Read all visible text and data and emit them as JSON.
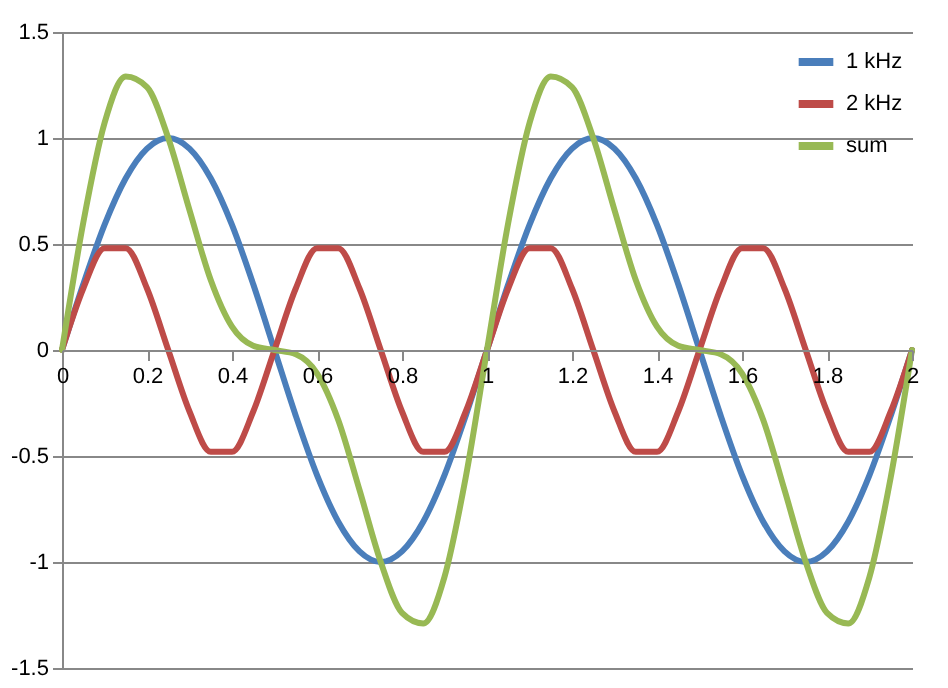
{
  "chart_data": {
    "type": "line",
    "x": [
      0,
      0.05,
      0.1,
      0.15,
      0.2,
      0.25,
      0.3,
      0.35,
      0.4,
      0.45,
      0.5,
      0.55,
      0.6,
      0.65,
      0.7,
      0.75,
      0.8,
      0.85,
      0.9,
      0.95,
      1,
      1.05,
      1.1,
      1.15,
      1.2,
      1.25,
      1.3,
      1.35,
      1.4,
      1.45,
      1.5,
      1.55,
      1.6,
      1.65,
      1.7,
      1.75,
      1.8,
      1.85,
      1.9,
      1.95,
      2
    ],
    "series": [
      {
        "name": "1 kHz",
        "color": "#4a7ebb",
        "values": [
          0,
          0.31,
          0.59,
          0.81,
          0.95,
          1,
          0.95,
          0.81,
          0.59,
          0.31,
          0,
          -0.31,
          -0.59,
          -0.81,
          -0.95,
          -1,
          -0.95,
          -0.81,
          -0.59,
          -0.31,
          0,
          0.31,
          0.59,
          0.81,
          0.95,
          1,
          0.95,
          0.81,
          0.59,
          0.31,
          0,
          -0.31,
          -0.59,
          -0.81,
          -0.95,
          -1,
          -0.95,
          -0.81,
          -0.59,
          -0.31,
          0
        ]
      },
      {
        "name": "2 kHz",
        "color": "#be4b48",
        "values": [
          0,
          0.29,
          0.48,
          0.48,
          0.29,
          0,
          -0.29,
          -0.48,
          -0.48,
          -0.29,
          0,
          0.29,
          0.48,
          0.48,
          0.29,
          0,
          -0.29,
          -0.48,
          -0.48,
          -0.29,
          0,
          0.29,
          0.48,
          0.48,
          0.29,
          0,
          -0.29,
          -0.48,
          -0.48,
          -0.29,
          0,
          0.29,
          0.48,
          0.48,
          0.29,
          0,
          -0.29,
          -0.48,
          -0.48,
          -0.29,
          0
        ]
      },
      {
        "name": "sum",
        "color": "#98b954",
        "values": [
          0,
          0.6,
          1.07,
          1.29,
          1.24,
          1,
          0.66,
          0.33,
          0.11,
          0.02,
          0,
          -0.02,
          -0.11,
          -0.33,
          -0.66,
          -1,
          -1.24,
          -1.29,
          -1.07,
          -0.6,
          0,
          0.6,
          1.07,
          1.29,
          1.24,
          1,
          0.66,
          0.33,
          0.11,
          0.02,
          0,
          -0.02,
          -0.11,
          -0.33,
          -0.66,
          -1,
          -1.24,
          -1.29,
          -1.07,
          -0.6,
          0
        ]
      }
    ],
    "xlim": [
      0,
      2
    ],
    "xticks": [
      0,
      0.2,
      0.4,
      0.6,
      0.8,
      1,
      1.2,
      1.4,
      1.6,
      1.8,
      2
    ],
    "ylim": [
      -1.5,
      1.5
    ],
    "yticks": [
      -1.5,
      -1,
      -0.5,
      0,
      0.5,
      1,
      1.5
    ],
    "grid": "y",
    "legend": "top right",
    "marker": "none",
    "line_style": "solid"
  }
}
